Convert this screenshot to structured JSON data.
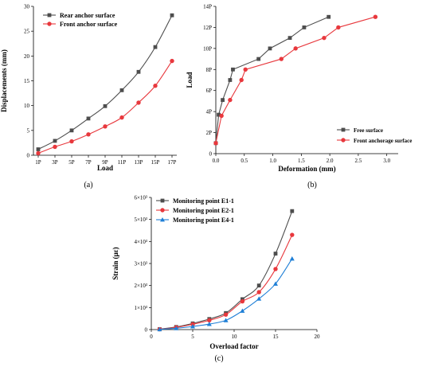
{
  "chart_data": [
    {
      "id": "a",
      "type": "line",
      "caption": "(a)",
      "xlabel": "Load",
      "ylabel": "Displacements (mm)",
      "categories": [
        "1P",
        "3P",
        "5P",
        "7P",
        "9P",
        "11P",
        "13P",
        "15P",
        "17P"
      ],
      "ylim": [
        0,
        30
      ],
      "yticks": [
        "0",
        "5",
        "10",
        "15",
        "20",
        "25",
        "30"
      ],
      "legend": "top-left",
      "series": [
        {
          "name": "Rear anchor surface",
          "color": "#4d4d4d",
          "marker": "square",
          "values": [
            1.2,
            2.9,
            5.0,
            7.4,
            9.9,
            13.1,
            16.8,
            21.8,
            28.2
          ]
        },
        {
          "name": "Front anchor surface",
          "color": "#e8383d",
          "marker": "circle",
          "values": [
            0.4,
            1.7,
            2.8,
            4.2,
            5.8,
            7.6,
            10.6,
            14.0,
            19.0
          ]
        }
      ]
    },
    {
      "id": "b",
      "type": "line",
      "caption": "(b)",
      "xlabel": "Deformation (mm)",
      "ylabel": "Load",
      "xlim": [
        0,
        3.2
      ],
      "xticks": [
        "0.0",
        "0.5",
        "1.0",
        "1.5",
        "2.0",
        "2.5",
        "3.0"
      ],
      "ylim": [
        0,
        14
      ],
      "yticks": [
        "0",
        "2P",
        "4P",
        "6P",
        "8P",
        "10P",
        "12P",
        "14P"
      ],
      "legend": "bottom-right",
      "series": [
        {
          "name": "Free surface",
          "color": "#4d4d4d",
          "marker": "square",
          "x": [
            0.0,
            0.05,
            0.12,
            0.25,
            0.3,
            0.75,
            0.95,
            1.3,
            1.55,
            1.98
          ],
          "y": [
            1,
            3.7,
            5.1,
            7,
            8,
            9,
            10,
            11,
            12,
            13
          ]
        },
        {
          "name": "Front anchorage surface",
          "color": "#e8383d",
          "marker": "circle",
          "x": [
            0.0,
            0.1,
            0.25,
            0.45,
            0.52,
            1.15,
            1.4,
            1.9,
            2.15,
            2.8
          ],
          "y": [
            1,
            3.6,
            5.1,
            7,
            8,
            9,
            10,
            11,
            12,
            13
          ]
        }
      ]
    },
    {
      "id": "c",
      "type": "line",
      "caption": "(c)",
      "xlabel": "Overload factor",
      "ylabel": "Strain (με)",
      "xlim": [
        0,
        20
      ],
      "xticks": [
        "0",
        "5",
        "10",
        "15",
        "20"
      ],
      "ylim": [
        0,
        6000
      ],
      "yticks": [
        "0",
        "1×10³",
        "2×10³",
        "3×10³",
        "4×10³",
        "5×10³",
        "6×10³"
      ],
      "legend": "top-left",
      "series": [
        {
          "name": "Monitoring point E1-1",
          "color": "#4d4d4d",
          "marker": "square",
          "x": [
            1,
            3,
            5,
            7,
            9,
            11,
            13,
            15,
            17
          ],
          "y": [
            20,
            120,
            280,
            480,
            750,
            1380,
            2000,
            3450,
            5380
          ]
        },
        {
          "name": "Monitoring point E2-1",
          "color": "#e8383d",
          "marker": "circle",
          "x": [
            1,
            3,
            5,
            7,
            9,
            11,
            13,
            15,
            17
          ],
          "y": [
            15,
            100,
            240,
            420,
            680,
            1280,
            1700,
            2750,
            4300
          ]
        },
        {
          "name": "Monitoring point E4-1",
          "color": "#1f7fd6",
          "marker": "triangle",
          "x": [
            1,
            3,
            5,
            7,
            9,
            11,
            13,
            15,
            17
          ],
          "y": [
            10,
            60,
            140,
            250,
            420,
            850,
            1400,
            2080,
            3220
          ]
        }
      ]
    }
  ]
}
